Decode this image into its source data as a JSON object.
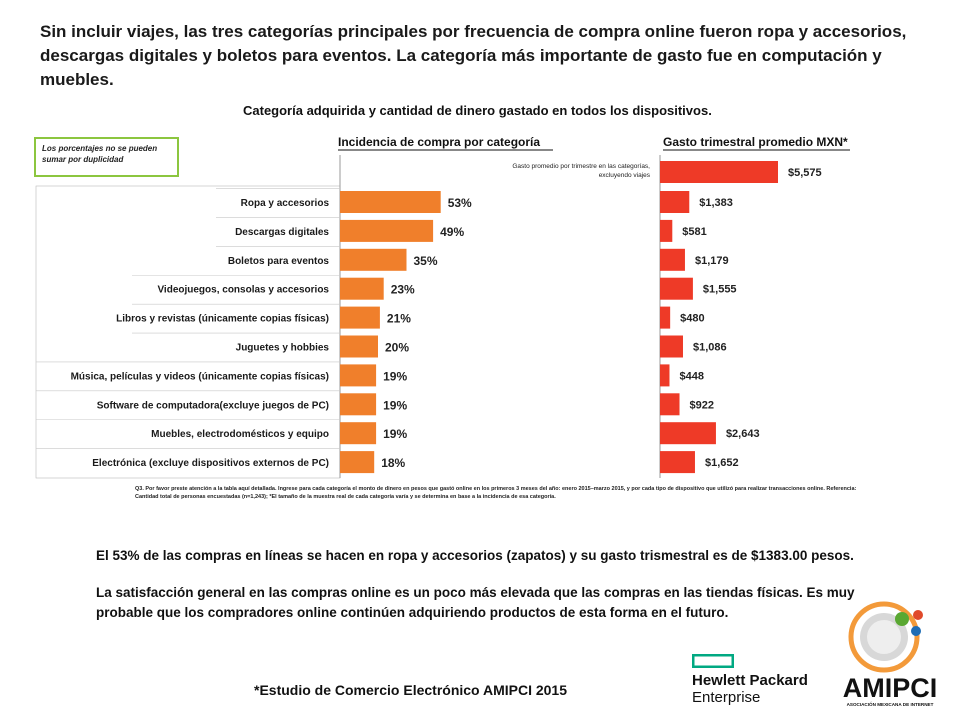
{
  "headline": "Sin incluir viajes, las tres categorías principales por frecuencia de compra online fueron ropa y accesorios, descargas digitales y boletos para eventos. La categoría más importante de gasto fue en computación y muebles.",
  "note": "Los porcentajes no se pueden sumar por duplicidad",
  "footnote": "Q3. Por favor preste atención a la tabla aquí detallada. Ingrese para cada categoría el monto de dinero en pesos que gastó online en los primeros 3 meses del año: enero 2015–marzo 2015, y por cada tipo de dispositivo que utilizó para realizar transacciones online. Referencia: Cantidad total de personas encuestadas (n=1,243); *El tamaño de la muestra real de cada categoría varía y se determina en base a la incidencia de esa categoría.",
  "summary": {
    "p1": "El 53% de las compras en líneas se hacen en ropa y accesorios (zapatos) y su gasto trismestral es de $1383.00 pesos.",
    "p2": " La satisfacción general en las compras online es un poco más elevada que las compras en las tiendas físicas. Es muy probable que los compradores online continúen adquiriendo productos de esta forma en el futuro."
  },
  "source": "*Estudio de Comercio Electrónico AMIPCI 2015",
  "logos": {
    "hpe_line1": "Hewlett Packard",
    "hpe_line2": "Enterprise",
    "amipci": "AMIPCI",
    "amipci_sub": "ASOCIACIÓN MEXICANA DE INTERNET"
  },
  "colors": {
    "incidence_bar": "#f07f2b",
    "spend_bar": "#ee3a27",
    "note_border": "#8cc63f",
    "hpe_green": "#01a982"
  },
  "chart_data": {
    "type": "bar",
    "title": "Categoría adquirida y cantidad de dinero gastado en todos los dispositivos.",
    "panels": [
      {
        "name": "Incidencia de compra por categoría",
        "unit": "%"
      },
      {
        "name": "Gasto trimestral promedio MXN*",
        "unit": "MXN"
      }
    ],
    "total_row": {
      "label": "Gasto promedio por trimestre en las categorías, excluyendo viajes",
      "spend": 5575,
      "spend_label": "$5,575"
    },
    "categories": [
      "Ropa y accesorios",
      "Descargas digitales",
      "Boletos para eventos",
      "Videojuegos, consolas y accesorios",
      "Libros y revistas (únicamente copias físicas)",
      "Juguetes y hobbies",
      "Música, películas y videos (únicamente copias físicas)",
      "Software de computadora(excluye juegos de PC)",
      "Muebles, electrodomésticos y equipo",
      "Electrónica (excluye dispositivos externos de PC)"
    ],
    "series": [
      {
        "name": "Incidencia de compra por categoría",
        "values": [
          53,
          49,
          35,
          23,
          21,
          20,
          19,
          19,
          19,
          18
        ],
        "labels": [
          "53%",
          "49%",
          "35%",
          "23%",
          "21%",
          "20%",
          "19%",
          "19%",
          "19%",
          "18%"
        ]
      },
      {
        "name": "Gasto trimestral promedio MXN*",
        "values": [
          1383,
          581,
          1179,
          1555,
          480,
          1086,
          448,
          922,
          2643,
          1652
        ],
        "labels": [
          "$1,383",
          "$581",
          "$1,179",
          "$1,555",
          "$480",
          "$1,086",
          "$448",
          "$922",
          "$2,643",
          "$1,652"
        ]
      }
    ]
  }
}
